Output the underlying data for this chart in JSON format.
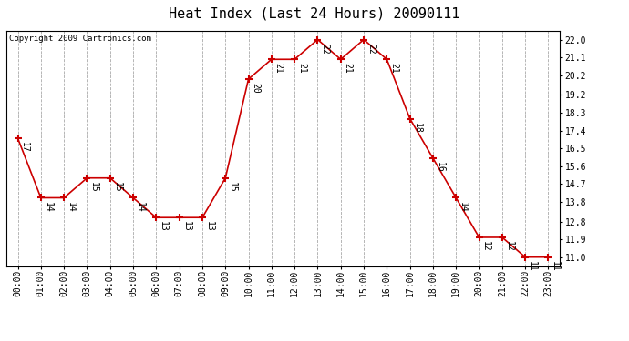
{
  "title": "Heat Index (Last 24 Hours) 20090111",
  "copyright": "Copyright 2009 Cartronics.com",
  "x_labels": [
    "00:00",
    "01:00",
    "02:00",
    "03:00",
    "04:00",
    "05:00",
    "06:00",
    "07:00",
    "08:00",
    "09:00",
    "10:00",
    "11:00",
    "12:00",
    "13:00",
    "14:00",
    "15:00",
    "16:00",
    "17:00",
    "18:00",
    "19:00",
    "20:00",
    "21:00",
    "22:00",
    "23:00"
  ],
  "y_values": [
    17,
    14,
    14,
    15,
    15,
    14,
    13,
    13,
    13,
    15,
    20,
    21,
    21,
    22,
    21,
    22,
    21,
    18,
    16,
    14,
    12,
    12,
    11,
    11
  ],
  "y_ticks": [
    11.0,
    11.9,
    12.8,
    13.8,
    14.7,
    15.6,
    16.5,
    17.4,
    18.3,
    19.2,
    20.2,
    21.1,
    22.0
  ],
  "ylim_min": 10.55,
  "ylim_max": 22.45,
  "line_color": "#cc0000",
  "marker_color": "#cc0000",
  "grid_color": "#aaaaaa",
  "bg_color": "#ffffff",
  "title_fontsize": 11,
  "copyright_fontsize": 6.5,
  "label_fontsize": 7,
  "tick_fontsize": 7,
  "annotation_rotation": -90
}
